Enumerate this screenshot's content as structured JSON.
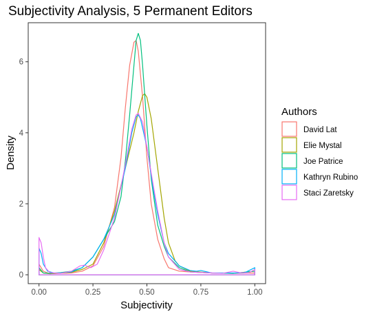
{
  "chart_data": {
    "type": "line",
    "subtype": "density",
    "title": "Subjectivity Analysis, 5 Permanent Editors",
    "xlabel": "Subjectivity",
    "ylabel": "Density",
    "xlim": [
      -0.05,
      1.05
    ],
    "ylim": [
      -0.25,
      7.1
    ],
    "x_ticks": [
      0.0,
      0.25,
      0.5,
      0.75,
      1.0
    ],
    "x_tick_labels": [
      "0.00",
      "0.25",
      "0.50",
      "0.75",
      "1.00"
    ],
    "y_ticks": [
      0,
      2,
      4,
      6
    ],
    "y_tick_labels": [
      "0",
      "2",
      "4",
      "6"
    ],
    "grid": false,
    "legend": {
      "title": "Authors",
      "position": "right"
    },
    "series": [
      {
        "name": "David Lat",
        "color": "#F8766D",
        "points": [
          [
            0.0,
            0.3
          ],
          [
            0.02,
            0.1
          ],
          [
            0.05,
            0.03
          ],
          [
            0.1,
            0.04
          ],
          [
            0.15,
            0.05
          ],
          [
            0.2,
            0.1
          ],
          [
            0.25,
            0.25
          ],
          [
            0.3,
            0.8
          ],
          [
            0.35,
            1.9
          ],
          [
            0.38,
            3.3
          ],
          [
            0.4,
            4.7
          ],
          [
            0.42,
            5.9
          ],
          [
            0.44,
            6.55
          ],
          [
            0.45,
            6.6
          ],
          [
            0.46,
            6.3
          ],
          [
            0.48,
            5.0
          ],
          [
            0.5,
            3.3
          ],
          [
            0.52,
            2.0
          ],
          [
            0.55,
            1.0
          ],
          [
            0.58,
            0.45
          ],
          [
            0.6,
            0.2
          ],
          [
            0.65,
            0.1
          ],
          [
            0.7,
            0.08
          ],
          [
            0.8,
            0.05
          ],
          [
            0.9,
            0.04
          ],
          [
            1.0,
            0.05
          ]
        ]
      },
      {
        "name": "Elie Mystal",
        "color": "#A3A500",
        "points": [
          [
            0.0,
            0.15
          ],
          [
            0.02,
            0.05
          ],
          [
            0.05,
            0.03
          ],
          [
            0.1,
            0.05
          ],
          [
            0.15,
            0.07
          ],
          [
            0.2,
            0.15
          ],
          [
            0.25,
            0.3
          ],
          [
            0.3,
            0.9
          ],
          [
            0.35,
            1.8
          ],
          [
            0.4,
            3.0
          ],
          [
            0.44,
            4.0
          ],
          [
            0.46,
            4.6
          ],
          [
            0.48,
            5.05
          ],
          [
            0.49,
            5.1
          ],
          [
            0.5,
            5.0
          ],
          [
            0.52,
            4.4
          ],
          [
            0.55,
            3.0
          ],
          [
            0.58,
            1.6
          ],
          [
            0.6,
            0.9
          ],
          [
            0.63,
            0.4
          ],
          [
            0.65,
            0.25
          ],
          [
            0.7,
            0.1
          ],
          [
            0.8,
            0.05
          ],
          [
            0.9,
            0.04
          ],
          [
            1.0,
            0.1
          ]
        ]
      },
      {
        "name": "Joe Patrice",
        "color": "#00BF7D",
        "points": [
          [
            0.0,
            0.2
          ],
          [
            0.02,
            0.05
          ],
          [
            0.05,
            0.04
          ],
          [
            0.1,
            0.06
          ],
          [
            0.15,
            0.1
          ],
          [
            0.2,
            0.2
          ],
          [
            0.25,
            0.5
          ],
          [
            0.3,
            1.0
          ],
          [
            0.35,
            1.5
          ],
          [
            0.38,
            2.2
          ],
          [
            0.4,
            3.2
          ],
          [
            0.42,
            4.5
          ],
          [
            0.44,
            5.9
          ],
          [
            0.45,
            6.6
          ],
          [
            0.46,
            6.8
          ],
          [
            0.47,
            6.6
          ],
          [
            0.48,
            5.9
          ],
          [
            0.5,
            4.2
          ],
          [
            0.52,
            2.7
          ],
          [
            0.55,
            1.4
          ],
          [
            0.58,
            0.8
          ],
          [
            0.6,
            0.5
          ],
          [
            0.65,
            0.2
          ],
          [
            0.7,
            0.08
          ],
          [
            0.8,
            0.05
          ],
          [
            0.9,
            0.04
          ],
          [
            1.0,
            0.1
          ]
        ]
      },
      {
        "name": "Kathryn Rubino",
        "color": "#00B0F6",
        "points": [
          [
            0.0,
            0.75
          ],
          [
            0.01,
            0.6
          ],
          [
            0.02,
            0.3
          ],
          [
            0.04,
            0.1
          ],
          [
            0.07,
            0.05
          ],
          [
            0.1,
            0.05
          ],
          [
            0.15,
            0.08
          ],
          [
            0.2,
            0.2
          ],
          [
            0.25,
            0.5
          ],
          [
            0.3,
            1.0
          ],
          [
            0.35,
            1.7
          ],
          [
            0.4,
            3.0
          ],
          [
            0.43,
            4.0
          ],
          [
            0.45,
            4.45
          ],
          [
            0.46,
            4.5
          ],
          [
            0.47,
            4.4
          ],
          [
            0.5,
            3.6
          ],
          [
            0.53,
            2.4
          ],
          [
            0.55,
            1.7
          ],
          [
            0.58,
            0.9
          ],
          [
            0.6,
            0.6
          ],
          [
            0.65,
            0.25
          ],
          [
            0.7,
            0.12
          ],
          [
            0.73,
            0.1
          ],
          [
            0.75,
            0.12
          ],
          [
            0.78,
            0.08
          ],
          [
            0.8,
            0.05
          ],
          [
            0.9,
            0.05
          ],
          [
            0.95,
            0.05
          ],
          [
            1.0,
            0.2
          ]
        ]
      },
      {
        "name": "Staci Zaretsky",
        "color": "#E76BF3",
        "points": [
          [
            0.0,
            1.05
          ],
          [
            0.01,
            0.9
          ],
          [
            0.02,
            0.5
          ],
          [
            0.03,
            0.2
          ],
          [
            0.05,
            0.06
          ],
          [
            0.1,
            0.04
          ],
          [
            0.15,
            0.1
          ],
          [
            0.19,
            0.25
          ],
          [
            0.21,
            0.27
          ],
          [
            0.24,
            0.2
          ],
          [
            0.27,
            0.3
          ],
          [
            0.3,
            0.7
          ],
          [
            0.35,
            1.6
          ],
          [
            0.4,
            3.1
          ],
          [
            0.43,
            4.1
          ],
          [
            0.45,
            4.5
          ],
          [
            0.46,
            4.55
          ],
          [
            0.48,
            4.3
          ],
          [
            0.5,
            3.6
          ],
          [
            0.53,
            2.5
          ],
          [
            0.55,
            1.8
          ],
          [
            0.58,
            0.9
          ],
          [
            0.6,
            0.5
          ],
          [
            0.65,
            0.15
          ],
          [
            0.7,
            0.08
          ],
          [
            0.8,
            0.05
          ],
          [
            0.85,
            0.04
          ],
          [
            0.9,
            0.1
          ],
          [
            0.93,
            0.06
          ],
          [
            0.97,
            0.05
          ],
          [
            1.0,
            0.15
          ]
        ]
      }
    ]
  }
}
